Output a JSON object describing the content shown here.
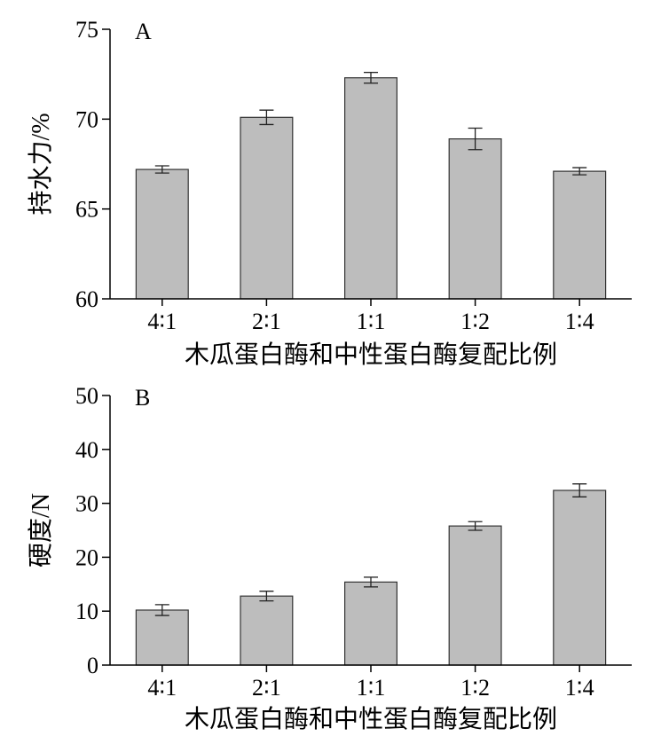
{
  "chart_data": [
    {
      "type": "bar",
      "panel_label": "A",
      "categories": [
        "4∶1",
        "2∶1",
        "1∶1",
        "1∶2",
        "1∶4"
      ],
      "values": [
        67.2,
        70.1,
        72.3,
        68.9,
        67.1
      ],
      "errors": [
        0.2,
        0.4,
        0.3,
        0.6,
        0.2
      ],
      "xlabel": "木瓜蛋白酶和中性蛋白酶复配比例",
      "ylabel": "持水力/%",
      "ylim": [
        60,
        75
      ],
      "yticks": [
        60,
        65,
        70,
        75
      ],
      "bar_color": "#bdbdbd",
      "grid": false
    },
    {
      "type": "bar",
      "panel_label": "B",
      "categories": [
        "4∶1",
        "2∶1",
        "1∶1",
        "1∶2",
        "1∶4"
      ],
      "values": [
        10.2,
        12.8,
        15.4,
        25.8,
        32.4
      ],
      "errors": [
        1.0,
        0.9,
        0.9,
        0.8,
        1.2
      ],
      "xlabel": "木瓜蛋白酶和中性蛋白酶复配比例",
      "ylabel": "硬度/N",
      "ylim": [
        0,
        50
      ],
      "yticks": [
        0,
        10,
        20,
        30,
        40,
        50
      ],
      "bar_color": "#bdbdbd",
      "grid": false
    }
  ]
}
